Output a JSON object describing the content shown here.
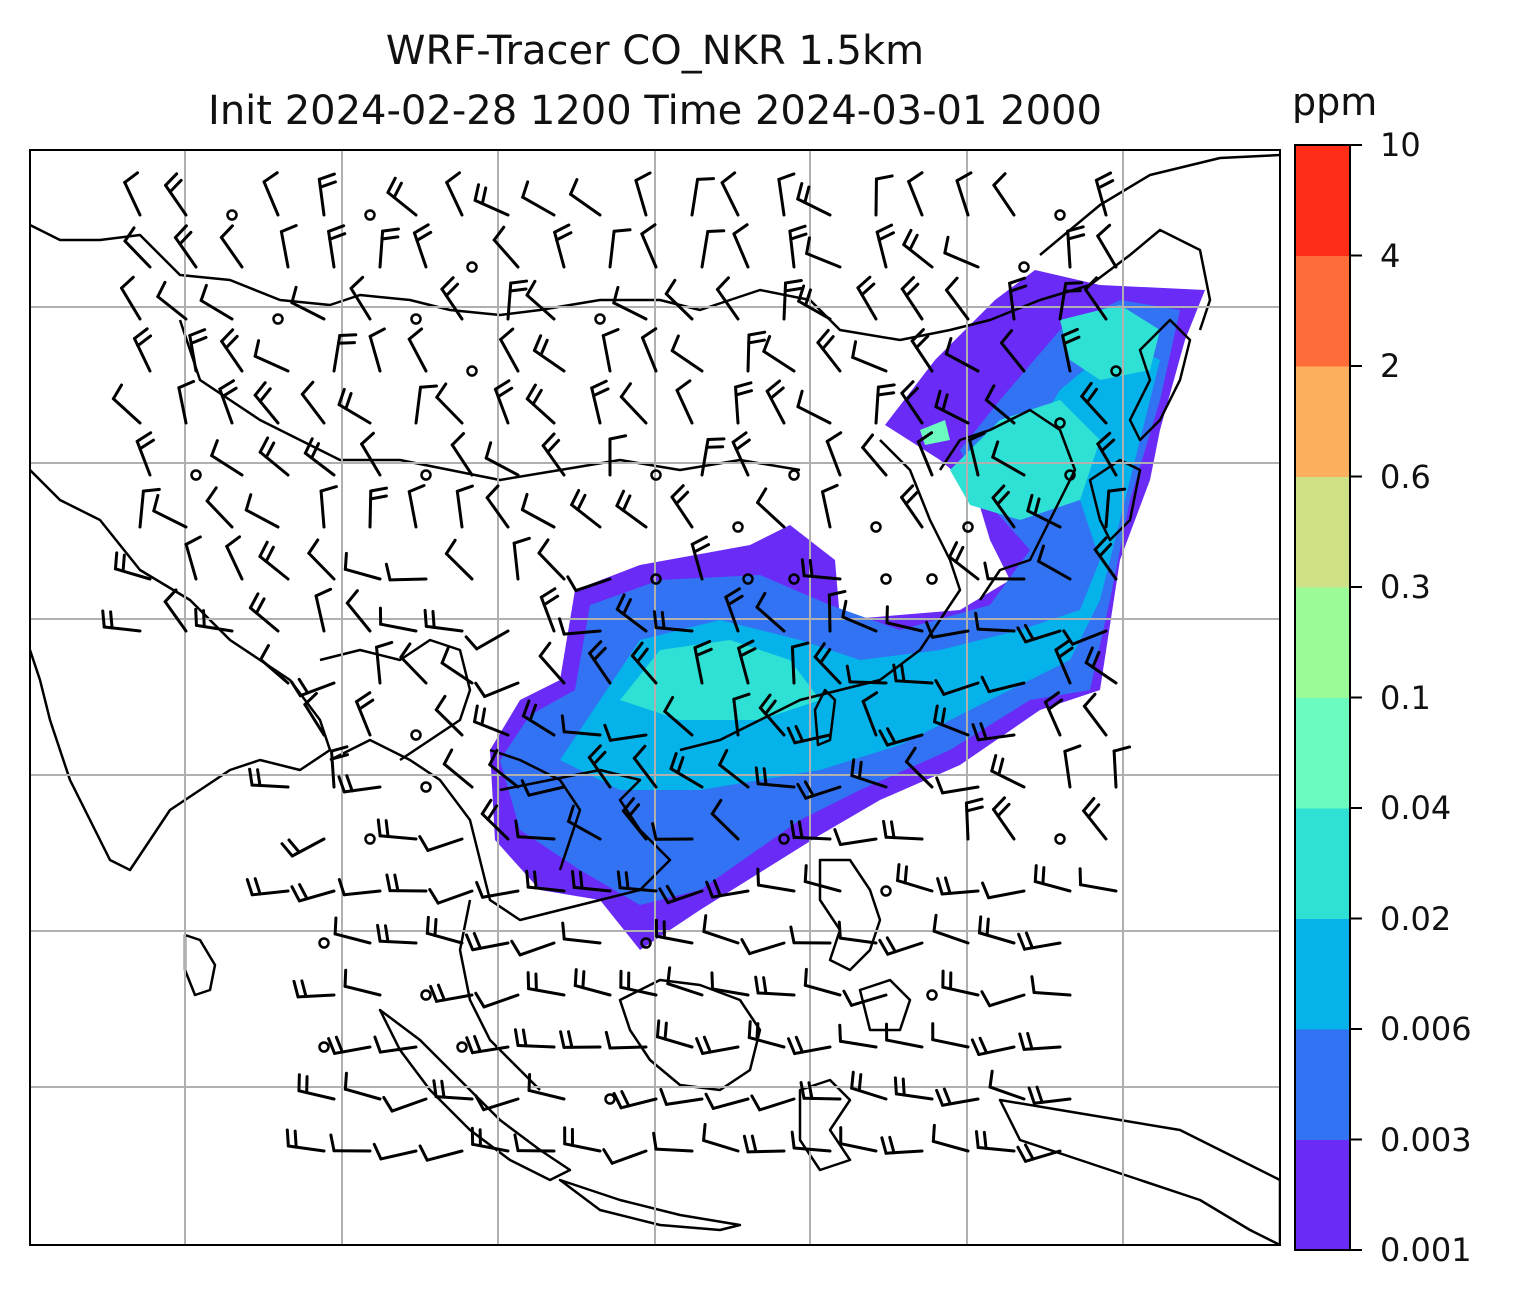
{
  "title_line1": "WRF-Tracer CO_NKR 1.5km",
  "title_line2": "Init 2024-02-28 1200 Time 2024-03-01 2000",
  "colorbar": {
    "unit": "ppm",
    "levels": [
      "0.001",
      "0.003",
      "0.006",
      "0.02",
      "0.04",
      "0.1",
      "0.3",
      "0.6",
      "2",
      "4",
      "10"
    ],
    "colors": [
      "#6a2bf6",
      "#3273f3",
      "#05b2ea",
      "#2fe0d4",
      "#6cfbbf",
      "#9bfb97",
      "#cfe187",
      "#fcaf5e",
      "#fe6c3a",
      "#fd2d18"
    ]
  },
  "map": {
    "frame_color": "#000000",
    "grid_color": "#b0b0b0",
    "coast_color": "#000000",
    "barb_color": "#000000",
    "plume_colors": {
      "low": "#6a2bf6",
      "mid": "#3273f3",
      "high": "#05b2ea",
      "peak": "#2fe0d4",
      "max": "#6cfbbf"
    }
  }
}
